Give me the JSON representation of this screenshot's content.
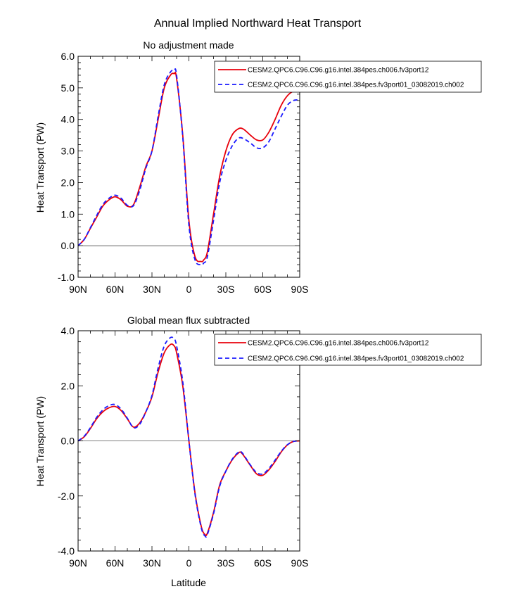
{
  "title": "Annual Implied Northward Heat Transport",
  "colors": {
    "series_1": "#e8000b",
    "series_2": "#1a1aff",
    "axis": "#000000"
  },
  "legend_entries": [
    "CESM2.QPC6.C96.C96.g16.intel.384pes.ch006.fv3port12",
    "CESM2.QPC6.C96.C96.g16.intel.384pes.fv3port01_03082019.ch002"
  ],
  "chart_data": [
    {
      "type": "line",
      "title": "No adjustment made",
      "xlabel": "",
      "ylabel": "Heat Transport (PW)",
      "xlim": [
        90,
        -90
      ],
      "ylim": [
        -1.0,
        6.0
      ],
      "xticks": [
        90,
        60,
        30,
        0,
        -30,
        -60,
        -90
      ],
      "xticklabels": [
        "90N",
        "60N",
        "30N",
        "0",
        "30S",
        "60S",
        "90S"
      ],
      "yticks": [
        -1.0,
        0.0,
        1.0,
        2.0,
        3.0,
        4.0,
        5.0,
        6.0
      ],
      "yticklabels": [
        "-1.0",
        "0.0",
        "1.0",
        "2.0",
        "3.0",
        "4.0",
        "5.0",
        "6.0"
      ],
      "zero_line": true,
      "legend_position": "top-right",
      "series": [
        {
          "name": "CESM2.QPC6.C96.C96.g16.intel.384pes.ch006.fv3port12",
          "style": "solid",
          "x": [
            90,
            85,
            80,
            75,
            70,
            65,
            60,
            55,
            50,
            45,
            40,
            35,
            30,
            25,
            20,
            15,
            12,
            10,
            5,
            0,
            -5,
            -10,
            -12,
            -15,
            -20,
            -25,
            -30,
            -35,
            -40,
            -44,
            -50,
            -55,
            -60,
            -65,
            -70,
            -75,
            -80,
            -85,
            -90
          ],
          "y": [
            0.0,
            0.2,
            0.55,
            0.9,
            1.25,
            1.45,
            1.55,
            1.45,
            1.25,
            1.3,
            1.85,
            2.5,
            3.0,
            4.0,
            5.0,
            5.4,
            5.45,
            5.3,
            3.5,
            0.8,
            -0.35,
            -0.5,
            -0.45,
            -0.2,
            1.0,
            2.2,
            3.0,
            3.5,
            3.7,
            3.7,
            3.5,
            3.35,
            3.35,
            3.6,
            4.0,
            4.45,
            4.75,
            4.9,
            4.95
          ]
        },
        {
          "name": "CESM2.QPC6.C96.C96.g16.intel.384pes.fv3port01_03082019.ch002",
          "style": "dashed",
          "x": [
            90,
            85,
            80,
            75,
            70,
            65,
            60,
            55,
            50,
            45,
            40,
            35,
            30,
            25,
            20,
            15,
            12,
            10,
            5,
            0,
            -5,
            -10,
            -12,
            -15,
            -20,
            -25,
            -30,
            -35,
            -40,
            -44,
            -50,
            -55,
            -60,
            -65,
            -70,
            -75,
            -80,
            -85,
            -90
          ],
          "y": [
            0.0,
            0.2,
            0.57,
            0.95,
            1.3,
            1.5,
            1.6,
            1.5,
            1.28,
            1.27,
            1.75,
            2.45,
            3.0,
            4.1,
            5.1,
            5.5,
            5.55,
            5.4,
            3.45,
            0.65,
            -0.45,
            -0.6,
            -0.55,
            -0.35,
            0.8,
            2.0,
            2.7,
            3.15,
            3.4,
            3.4,
            3.25,
            3.1,
            3.1,
            3.3,
            3.7,
            4.1,
            4.45,
            4.6,
            4.62
          ]
        }
      ]
    },
    {
      "type": "line",
      "title": "Global mean flux subtracted",
      "xlabel": "Latitude",
      "ylabel": "Heat Transport (PW)",
      "xlim": [
        90,
        -90
      ],
      "ylim": [
        -4.0,
        4.0
      ],
      "xticks": [
        90,
        60,
        30,
        0,
        -30,
        -60,
        -90
      ],
      "xticklabels": [
        "90N",
        "60N",
        "30N",
        "0",
        "30S",
        "60S",
        "90S"
      ],
      "yticks": [
        -4.0,
        -2.0,
        0.0,
        2.0,
        4.0
      ],
      "yticklabels": [
        "-4.0",
        "-2.0",
        "0.0",
        "2.0",
        "4.0"
      ],
      "zero_line": true,
      "legend_position": "top-right",
      "series": [
        {
          "name": "CESM2.QPC6.C96.C96.g16.intel.384pes.ch006.fv3port12",
          "style": "solid",
          "x": [
            90,
            85,
            80,
            75,
            70,
            65,
            60,
            55,
            50,
            45,
            40,
            35,
            30,
            25,
            20,
            15,
            12,
            10,
            5,
            0,
            -5,
            -10,
            -13,
            -15,
            -20,
            -25,
            -30,
            -35,
            -40,
            -43,
            -50,
            -55,
            -60,
            -65,
            -70,
            -75,
            -80,
            -85,
            -90
          ],
          "y": [
            0.0,
            0.15,
            0.45,
            0.8,
            1.05,
            1.2,
            1.25,
            1.1,
            0.8,
            0.5,
            0.65,
            1.05,
            1.6,
            2.5,
            3.2,
            3.5,
            3.45,
            3.2,
            2.0,
            0.0,
            -1.9,
            -3.1,
            -3.4,
            -3.35,
            -2.6,
            -1.6,
            -1.1,
            -0.7,
            -0.45,
            -0.45,
            -0.9,
            -1.2,
            -1.25,
            -1.05,
            -0.75,
            -0.4,
            -0.15,
            -0.02,
            0.0
          ]
        },
        {
          "name": "CESM2.QPC6.C96.C96.g16.intel.384pes.fv3port01_03082019.ch002",
          "style": "dashed",
          "x": [
            90,
            85,
            80,
            75,
            70,
            65,
            60,
            55,
            50,
            45,
            40,
            35,
            30,
            25,
            20,
            15,
            12,
            10,
            5,
            0,
            -5,
            -10,
            -13,
            -15,
            -20,
            -25,
            -30,
            -35,
            -40,
            -43,
            -50,
            -55,
            -60,
            -65,
            -70,
            -75,
            -80,
            -85,
            -90
          ],
          "y": [
            0.0,
            0.17,
            0.48,
            0.85,
            1.12,
            1.28,
            1.32,
            1.15,
            0.82,
            0.48,
            0.6,
            1.05,
            1.65,
            2.65,
            3.45,
            3.75,
            3.7,
            3.45,
            2.15,
            0.0,
            -1.95,
            -3.15,
            -3.45,
            -3.4,
            -2.65,
            -1.65,
            -1.1,
            -0.68,
            -0.42,
            -0.42,
            -0.88,
            -1.15,
            -1.2,
            -1.0,
            -0.7,
            -0.38,
            -0.14,
            -0.02,
            0.0
          ]
        }
      ]
    }
  ]
}
